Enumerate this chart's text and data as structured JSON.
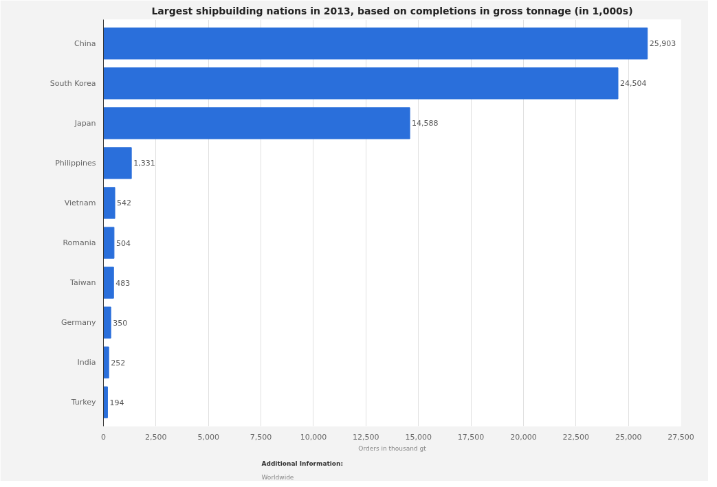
{
  "chart_data": {
    "type": "bar",
    "orientation": "horizontal",
    "title": "Largest shipbuilding nations in 2013, based on completions in gross tonnage (in 1,000s)",
    "xlabel": "Orders in thousand gt",
    "categories": [
      "China",
      "South Korea",
      "Japan",
      "Philippines",
      "Vietnam",
      "Romania",
      "Taiwan",
      "Germany",
      "India",
      "Turkey"
    ],
    "values": [
      25903,
      24504,
      14588,
      1331,
      542,
      504,
      483,
      350,
      252,
      194
    ],
    "color": "#2a6fdb",
    "xlim": [
      0,
      27500
    ],
    "xticks": [
      {
        "value": 0,
        "label": "0"
      },
      {
        "value": 2500,
        "label": "2,500"
      },
      {
        "value": 5000,
        "label": "5,000"
      },
      {
        "value": 7500,
        "label": "7,500"
      },
      {
        "value": 10000,
        "label": "10,000"
      },
      {
        "value": 12500,
        "label": "12,500"
      },
      {
        "value": 15000,
        "label": "15,000"
      },
      {
        "value": 17500,
        "label": "17,500"
      },
      {
        "value": 20000,
        "label": "20,000"
      },
      {
        "value": 22500,
        "label": "22,500"
      },
      {
        "value": 25000,
        "label": "25,000"
      },
      {
        "value": 27500,
        "label": "27,500"
      }
    ],
    "grid": "x",
    "value_labels": [
      "25,903",
      "24,504",
      "14,588",
      "1,331",
      "542",
      "504",
      "483",
      "350",
      "252",
      "194"
    ],
    "annotations": [
      "Additional Information:",
      "Worldwide"
    ]
  }
}
